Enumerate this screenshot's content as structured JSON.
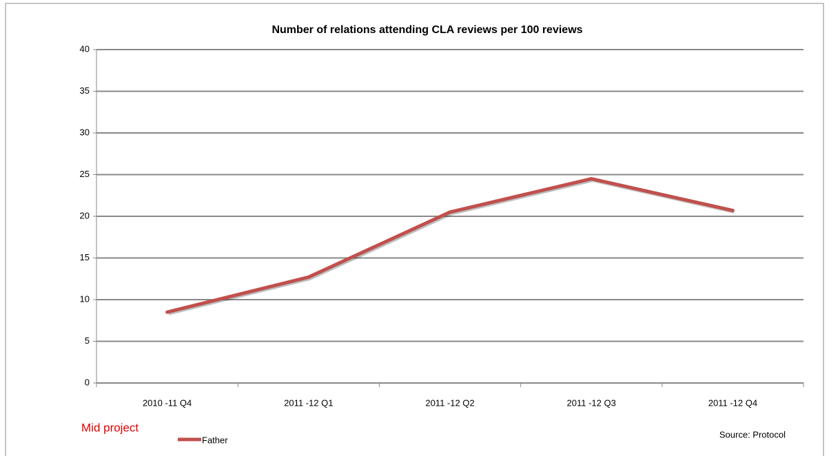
{
  "chart_data": {
    "type": "line",
    "title": "Number of relations attending CLA reviews per 100 reviews",
    "categories": [
      "2010 -11 Q4",
      "2011 -12 Q1",
      "2011 -12 Q2",
      "2011 -12 Q3",
      "2011 -12 Q4"
    ],
    "series": [
      {
        "name": "Father",
        "color": "#c0504d",
        "values": [
          8.5,
          12.7,
          20.5,
          24.5,
          20.7
        ]
      }
    ],
    "ylim": [
      0,
      40
    ],
    "yticks": [
      0,
      5,
      10,
      15,
      20,
      25,
      30,
      35,
      40
    ],
    "grid": true,
    "legend": "bottom",
    "annotations": [
      "Mid project",
      "Source:  Protocol"
    ]
  }
}
